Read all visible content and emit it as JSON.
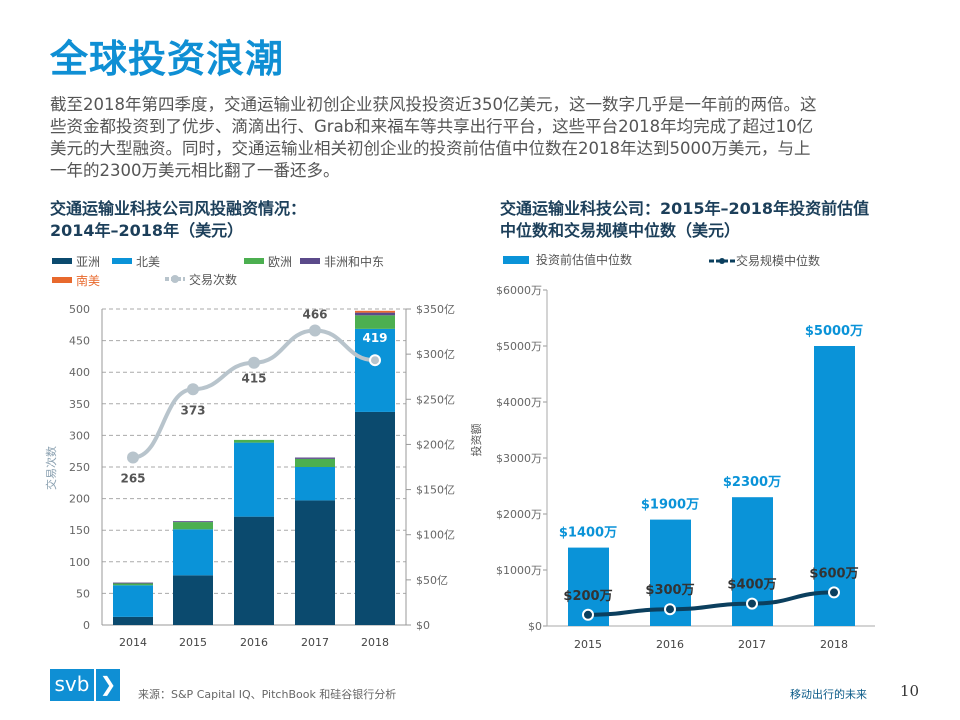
{
  "title": "全球投资浪潮",
  "paragraph": [
    "截至2018年第四季度，交通运输业初创企业获风投投资近350亿美元，这一数字几乎是一年前的两倍。这",
    "些资金都投资到了优步、滴滴出行、Grab和来福车等共享出行平台，这些平台2018年均完成了超过10亿",
    "美元的大型融资。同时，交通运输业相关初创企业的投资前估值中位数在2018年达到5000万美元，与上",
    "一年的2300万美元相比翻了一番还多。"
  ],
  "footer": {
    "logo_text": "svb",
    "logo_chevron": "❯",
    "source": "来源：S&P Capital IQ、PitchBook 和硅谷银行分析",
    "deck_title": "移动出行的未来",
    "page": "10"
  },
  "colors": {
    "title": "#0f8fd4",
    "asia": "#0b4a6e",
    "north_america": "#0a93d8",
    "europe": "#4caf50",
    "africa_me": "#5b4a8a",
    "south_america": "#e8692d",
    "deal_count": "#b8c4cc",
    "median_deal": "#0b3f5e"
  },
  "chart_data": [
    {
      "type": "bar",
      "stacked": true,
      "title_lines": [
        "交通运输业科技公司风投融资情况：",
        "2014年–2018年（美元）"
      ],
      "categories": [
        "2014",
        "2015",
        "2016",
        "2017",
        "2018"
      ],
      "ylabel": "交易次数",
      "ylim": [
        0,
        500
      ],
      "yticks": [
        "0",
        "50",
        "100",
        "150",
        "200",
        "250",
        "300",
        "350",
        "400",
        "450",
        "500"
      ],
      "y2lim": [
        0,
        350
      ],
      "y2ticks": [
        "$0",
        "$50亿",
        "$100亿",
        "$150亿",
        "$200亿",
        "$250亿",
        "$300亿",
        "$350亿"
      ],
      "grid": true,
      "series": [
        {
          "name": "亚洲",
          "axis": "right",
          "values": [
            9,
            55,
            120,
            138,
            236
          ]
        },
        {
          "name": "北美",
          "axis": "right",
          "values": [
            35,
            51,
            82,
            37,
            92
          ]
        },
        {
          "name": "欧洲",
          "axis": "right",
          "values": [
            2,
            8,
            3,
            9,
            15
          ]
        },
        {
          "name": "非洲和中东",
          "axis": "right",
          "values": [
            1,
            1,
            0,
            1.5,
            3
          ]
        },
        {
          "name": "南美",
          "axis": "right",
          "values": [
            0,
            0,
            0,
            0,
            2
          ]
        },
        {
          "name": "交易次数",
          "type": "line",
          "axis": "left",
          "values": [
            265,
            373,
            415,
            466,
            419
          ],
          "labels": [
            "265",
            "373",
            "415",
            "466",
            "419"
          ]
        }
      ],
      "legend": "top"
    },
    {
      "type": "bar",
      "title_lines": [
        "交通运输业科技公司：2015年–2018年投资前估值",
        "中位数和交易规模中位数（美元）"
      ],
      "categories": [
        "2015",
        "2016",
        "2017",
        "2018"
      ],
      "ylabel": "投资额",
      "ylim": [
        0,
        6000
      ],
      "yticks": [
        "$0",
        "$1000万",
        "$2000万",
        "$3000万",
        "$4000万",
        "$5000万",
        "$6000万"
      ],
      "series": [
        {
          "name": "投资前估值中位数",
          "type": "bar",
          "values": [
            1400,
            1900,
            2300,
            5000
          ],
          "labels": [
            "$1400万",
            "$1900万",
            "$2300万",
            "$5000万"
          ]
        },
        {
          "name": "交易规模中位数",
          "type": "line",
          "values": [
            200,
            300,
            400,
            600
          ],
          "labels": [
            "$200万",
            "$300万",
            "$400万",
            "$600万"
          ]
        }
      ],
      "legend": "top"
    }
  ]
}
